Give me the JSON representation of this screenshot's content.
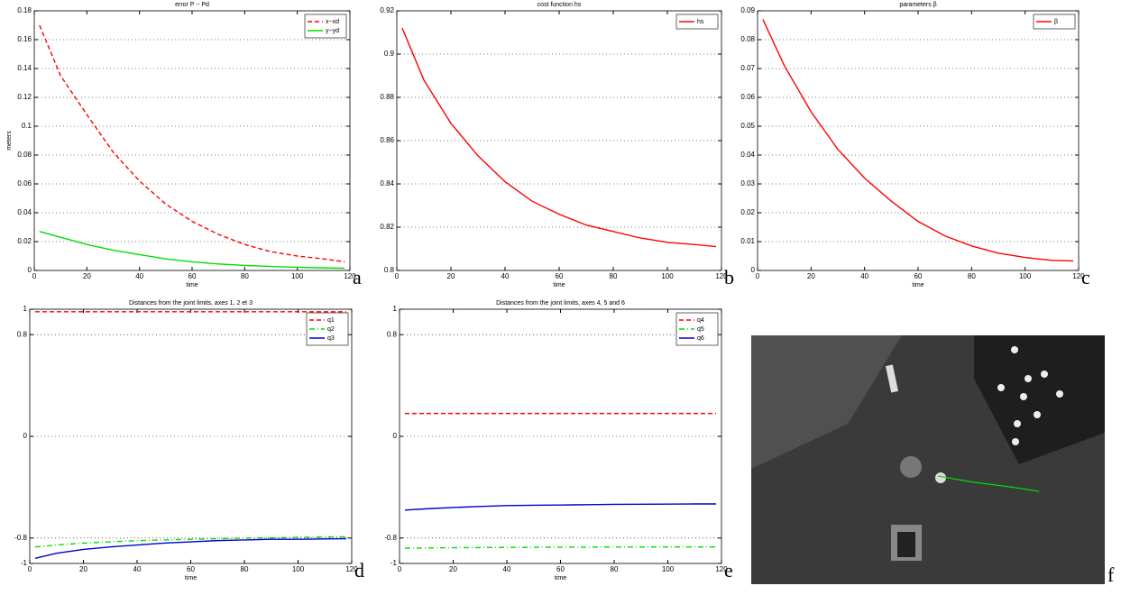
{
  "chart_data": [
    {
      "type": "line",
      "title": "error P − Pd",
      "xlabel": "time",
      "ylabel": "meters",
      "panel": "a",
      "x": [
        2,
        10,
        20,
        30,
        40,
        50,
        60,
        70,
        80,
        90,
        100,
        110,
        118
      ],
      "xlim": [
        0,
        120
      ],
      "xticks": [
        0,
        20,
        40,
        60,
        80,
        100,
        120
      ],
      "ylim": [
        0,
        0.18
      ],
      "yticks": [
        0,
        0.02,
        0.04,
        0.06,
        0.08,
        0.1,
        0.12,
        0.14,
        0.16,
        0.18
      ],
      "grid": "y",
      "legend": "upper right",
      "series": [
        {
          "name": "x−xd",
          "color": "#ff0000",
          "style": "dashed",
          "values": [
            0.17,
            0.135,
            0.108,
            0.082,
            0.062,
            0.046,
            0.034,
            0.025,
            0.018,
            0.013,
            0.01,
            0.008,
            0.006
          ]
        },
        {
          "name": "y−yd",
          "color": "#00dd00",
          "style": "solid",
          "values": [
            0.027,
            0.023,
            0.018,
            0.014,
            0.011,
            0.008,
            0.006,
            0.0045,
            0.0035,
            0.0028,
            0.0022,
            0.0018,
            0.0015
          ]
        }
      ]
    },
    {
      "type": "line",
      "title": "cost function hs",
      "xlabel": "time",
      "panel": "b",
      "x": [
        2,
        10,
        20,
        30,
        40,
        50,
        60,
        70,
        80,
        90,
        100,
        110,
        118
      ],
      "xlim": [
        0,
        120
      ],
      "xticks": [
        0,
        20,
        40,
        60,
        80,
        100,
        120
      ],
      "ylim": [
        0.8,
        0.92
      ],
      "yticks": [
        0.8,
        0.82,
        0.84,
        0.86,
        0.88,
        0.9,
        0.92
      ],
      "grid": "y",
      "legend": "upper right",
      "series": [
        {
          "name": "hs",
          "color": "#ff0000",
          "style": "solid",
          "values": [
            0.912,
            0.888,
            0.868,
            0.853,
            0.841,
            0.832,
            0.826,
            0.821,
            0.818,
            0.815,
            0.813,
            0.812,
            0.811
          ]
        }
      ]
    },
    {
      "type": "line",
      "title": "parameters β",
      "xlabel": "time",
      "panel": "c",
      "x": [
        2,
        10,
        20,
        30,
        40,
        50,
        60,
        70,
        80,
        90,
        100,
        110,
        118
      ],
      "xlim": [
        0,
        120
      ],
      "xticks": [
        0,
        20,
        40,
        60,
        80,
        100,
        120
      ],
      "ylim": [
        0,
        0.09
      ],
      "yticks": [
        0,
        0.01,
        0.02,
        0.03,
        0.04,
        0.05,
        0.06,
        0.07,
        0.08,
        0.09
      ],
      "grid": "y",
      "legend": "upper right",
      "series": [
        {
          "name": "β",
          "color": "#ff0000",
          "style": "solid",
          "values": [
            0.087,
            0.071,
            0.055,
            0.042,
            0.032,
            0.024,
            0.017,
            0.012,
            0.0085,
            0.006,
            0.0045,
            0.0035,
            0.0033
          ]
        }
      ]
    },
    {
      "type": "line",
      "title": "Distances from the joint limits, axes 1, 2 et 3",
      "xlabel": "time",
      "panel": "d",
      "x": [
        2,
        10,
        20,
        30,
        40,
        50,
        60,
        70,
        80,
        90,
        100,
        110,
        118
      ],
      "xlim": [
        0,
        120
      ],
      "xticks": [
        0,
        20,
        40,
        60,
        80,
        100,
        120
      ],
      "ylim": [
        -1,
        1
      ],
      "yticks": [
        -1,
        -0.8,
        0,
        0.8,
        1
      ],
      "grid": "y",
      "legend": "upper right",
      "series": [
        {
          "name": "q1",
          "color": "#ff0000",
          "style": "dashed",
          "values": [
            0.98,
            0.98,
            0.98,
            0.98,
            0.98,
            0.98,
            0.98,
            0.98,
            0.98,
            0.98,
            0.98,
            0.98,
            0.98
          ]
        },
        {
          "name": "q2",
          "color": "#00dd00",
          "style": "dashdot",
          "values": [
            -0.87,
            -0.855,
            -0.84,
            -0.83,
            -0.82,
            -0.815,
            -0.81,
            -0.805,
            -0.8,
            -0.798,
            -0.795,
            -0.792,
            -0.79
          ]
        },
        {
          "name": "q3",
          "color": "#0000cc",
          "style": "solid",
          "values": [
            -0.96,
            -0.92,
            -0.89,
            -0.87,
            -0.855,
            -0.84,
            -0.83,
            -0.82,
            -0.815,
            -0.81,
            -0.81,
            -0.807,
            -0.805
          ]
        }
      ]
    },
    {
      "type": "line",
      "title": "Distances from the joint limits, axes 4, 5 and 6",
      "xlabel": "time",
      "panel": "e",
      "x": [
        2,
        10,
        20,
        30,
        40,
        50,
        60,
        70,
        80,
        90,
        100,
        110,
        118
      ],
      "xlim": [
        0,
        120
      ],
      "xticks": [
        0,
        20,
        40,
        60,
        80,
        100,
        120
      ],
      "ylim": [
        -1,
        1
      ],
      "yticks": [
        -1,
        -0.8,
        0,
        0.8,
        1
      ],
      "grid": "y",
      "legend": "upper right",
      "series": [
        {
          "name": "q4",
          "color": "#ff0000",
          "style": "dashed",
          "values": [
            0.18,
            0.18,
            0.18,
            0.18,
            0.18,
            0.18,
            0.18,
            0.18,
            0.18,
            0.18,
            0.18,
            0.18,
            0.18
          ]
        },
        {
          "name": "q5",
          "color": "#00dd00",
          "style": "dashdot",
          "values": [
            -0.88,
            -0.878,
            -0.876,
            -0.875,
            -0.874,
            -0.873,
            -0.872,
            -0.872,
            -0.871,
            -0.871,
            -0.87,
            -0.87,
            -0.87
          ]
        },
        {
          "name": "q6",
          "color": "#0000cc",
          "style": "solid",
          "values": [
            -0.58,
            -0.57,
            -0.56,
            -0.552,
            -0.545,
            -0.542,
            -0.54,
            -0.538,
            -0.535,
            -0.534,
            -0.533,
            -0.532,
            -0.532
          ]
        }
      ]
    }
  ],
  "photo_panel": "f"
}
